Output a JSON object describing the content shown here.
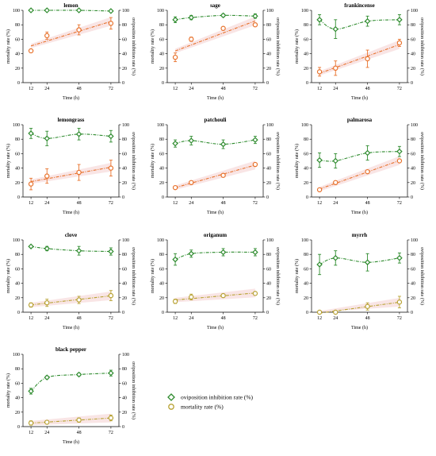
{
  "colors": {
    "green": "#2e8b2e",
    "orange": "#e8722c",
    "olive": "#b8a233",
    "shade": "#f7dede"
  },
  "legend": {
    "oviposition_label": "oviposition inhibition rate (%)",
    "mortality_label": "mortality rate (%)"
  },
  "axis_text": {
    "x_label": "Time (h)",
    "y_left_label": "mortality rate (%)",
    "y_right_label": "oviposition inhibition rate (%)"
  },
  "chart_data": [
    {
      "type": "line",
      "title": "lemon",
      "x": [
        12,
        24,
        48,
        72
      ],
      "x_ticks": [
        12,
        24,
        48,
        72
      ],
      "xlabel": "Time (h)",
      "ylabel": "mortality rate (%)",
      "y2label": "oviposition inhibition rate (%)",
      "ylim": [
        0,
        100
      ],
      "y_ticks": [
        0,
        20,
        40,
        60,
        80,
        100
      ],
      "mortality_color": "orange",
      "series": [
        {
          "name": "oviposition inhibition rate (%)",
          "axis": "right",
          "values": [
            100,
            100,
            100,
            99
          ],
          "errors": [
            1,
            1,
            1,
            1
          ]
        },
        {
          "name": "mortality rate (%)",
          "axis": "left",
          "values": [
            44,
            65,
            73,
            82
          ],
          "errors": [
            1,
            5,
            7,
            8
          ]
        }
      ]
    },
    {
      "type": "line",
      "title": "sage",
      "x": [
        12,
        24,
        48,
        72
      ],
      "x_ticks": [
        12,
        24,
        48,
        72
      ],
      "xlabel": "Time (h)",
      "ylabel": "mortality rate (%)",
      "y2label": "oviposition inhibition rate (%)",
      "ylim": [
        0,
        100
      ],
      "y_ticks": [
        0,
        20,
        40,
        60,
        80,
        100
      ],
      "mortality_color": "orange",
      "series": [
        {
          "name": "oviposition inhibition rate (%)",
          "axis": "right",
          "values": [
            87,
            90,
            93,
            92
          ],
          "errors": [
            4,
            3,
            2,
            3
          ]
        },
        {
          "name": "mortality rate (%)",
          "axis": "left",
          "values": [
            35,
            60,
            75,
            80
          ],
          "errors": [
            6,
            3,
            1,
            1
          ]
        }
      ]
    },
    {
      "type": "line",
      "title": "frankincense",
      "x": [
        12,
        24,
        48,
        72
      ],
      "x_ticks": [
        12,
        24,
        48,
        72
      ],
      "xlabel": "Time (h)",
      "ylabel": "mortality rate (%)",
      "y2label": "oviposition inhibition rate (%)",
      "ylim": [
        0,
        100
      ],
      "y_ticks": [
        0,
        20,
        40,
        60,
        80,
        100
      ],
      "mortality_color": "orange",
      "series": [
        {
          "name": "oviposition inhibition rate (%)",
          "axis": "right",
          "values": [
            87,
            74,
            85,
            87
          ],
          "errors": [
            7,
            13,
            7,
            7
          ]
        },
        {
          "name": "mortality rate (%)",
          "axis": "left",
          "values": [
            15,
            20,
            33,
            55
          ],
          "errors": [
            6,
            10,
            12,
            5
          ]
        }
      ]
    },
    {
      "type": "line",
      "title": "lemongrass",
      "x": [
        12,
        24,
        48,
        72
      ],
      "x_ticks": [
        12,
        24,
        48,
        72
      ],
      "xlabel": "Time (h)",
      "ylabel": "mortality rate (%)",
      "y2label": "oviposition inhibition rate (%)",
      "ylim": [
        0,
        100
      ],
      "y_ticks": [
        0,
        20,
        40,
        60,
        80,
        100
      ],
      "mortality_color": "orange",
      "series": [
        {
          "name": "oviposition inhibition rate (%)",
          "axis": "right",
          "values": [
            88,
            81,
            87,
            84
          ],
          "errors": [
            7,
            10,
            8,
            8
          ]
        },
        {
          "name": "mortality rate (%)",
          "axis": "left",
          "values": [
            18,
            29,
            34,
            40
          ],
          "errors": [
            8,
            10,
            11,
            11
          ]
        }
      ]
    },
    {
      "type": "line",
      "title": "patchouli",
      "x": [
        12,
        24,
        48,
        72
      ],
      "x_ticks": [
        12,
        24,
        48,
        72
      ],
      "xlabel": "Time (h)",
      "ylabel": "mortality rate (%)",
      "y2label": "oviposition inhibition rate (%)",
      "ylim": [
        0,
        100
      ],
      "y_ticks": [
        0,
        20,
        40,
        60,
        80,
        100
      ],
      "mortality_color": "orange",
      "series": [
        {
          "name": "oviposition inhibition rate (%)",
          "axis": "right",
          "values": [
            74,
            78,
            73,
            79
          ],
          "errors": [
            5,
            6,
            6,
            5
          ]
        },
        {
          "name": "mortality rate (%)",
          "axis": "left",
          "values": [
            13,
            20,
            30,
            45
          ],
          "errors": [
            1,
            1,
            1,
            2
          ]
        }
      ]
    },
    {
      "type": "line",
      "title": "palmarosa",
      "x": [
        12,
        24,
        48,
        72
      ],
      "x_ticks": [
        12,
        24,
        48,
        72
      ],
      "xlabel": "Time (h)",
      "ylabel": "mortality rate (%)",
      "y2label": "oviposition inhibition rate (%)",
      "ylim": [
        0,
        100
      ],
      "y_ticks": [
        0,
        20,
        40,
        60,
        80,
        100
      ],
      "mortality_color": "orange",
      "series": [
        {
          "name": "oviposition inhibition rate (%)",
          "axis": "right",
          "values": [
            51,
            50,
            61,
            63
          ],
          "errors": [
            10,
            10,
            10,
            7
          ]
        },
        {
          "name": "mortality rate (%)",
          "axis": "left",
          "values": [
            10,
            20,
            35,
            50
          ],
          "errors": [
            1,
            1,
            1,
            1
          ]
        }
      ]
    },
    {
      "type": "line",
      "title": "clove",
      "x": [
        12,
        24,
        48,
        72
      ],
      "x_ticks": [
        12,
        24,
        48,
        72
      ],
      "xlabel": "Time (h)",
      "ylabel": "mortality rate (%)",
      "y2label": "oviposition inhibition rate (%)",
      "ylim": [
        0,
        100
      ],
      "y_ticks": [
        0,
        20,
        40,
        60,
        80,
        100
      ],
      "mortality_color": "olive",
      "series": [
        {
          "name": "oviposition inhibition rate (%)",
          "axis": "right",
          "values": [
            91,
            88,
            85,
            84
          ],
          "errors": [
            1,
            3,
            6,
            5
          ]
        },
        {
          "name": "mortality rate (%)",
          "axis": "left",
          "values": [
            10,
            13,
            17,
            23
          ],
          "errors": [
            3,
            5,
            5,
            7
          ]
        }
      ]
    },
    {
      "type": "line",
      "title": "origanum",
      "x": [
        12,
        24,
        48,
        72
      ],
      "x_ticks": [
        12,
        24,
        48,
        72
      ],
      "xlabel": "Time (h)",
      "ylabel": "mortality rate (%)",
      "y2label": "oviposition inhibition rate (%)",
      "ylim": [
        0,
        100
      ],
      "y_ticks": [
        0,
        20,
        40,
        60,
        80,
        100
      ],
      "mortality_color": "olive",
      "series": [
        {
          "name": "oviposition inhibition rate (%)",
          "axis": "right",
          "values": [
            73,
            81,
            83,
            83
          ],
          "errors": [
            8,
            5,
            5,
            5
          ]
        },
        {
          "name": "mortality rate (%)",
          "axis": "left",
          "values": [
            15,
            21,
            23,
            26
          ],
          "errors": [
            3,
            4,
            2,
            1
          ]
        }
      ]
    },
    {
      "type": "line",
      "title": "myrrh",
      "x": [
        12,
        24,
        48,
        72
      ],
      "x_ticks": [
        12,
        24,
        48,
        72
      ],
      "xlabel": "Time (h)",
      "ylabel": "mortality rate (%)",
      "y2label": "oviposition inhibition rate (%)",
      "ylim": [
        0,
        100
      ],
      "y_ticks": [
        0,
        20,
        40,
        60,
        80,
        100
      ],
      "mortality_color": "olive",
      "series": [
        {
          "name": "oviposition inhibition rate (%)",
          "axis": "right",
          "values": [
            66,
            75,
            69,
            75
          ],
          "errors": [
            14,
            10,
            12,
            7
          ]
        },
        {
          "name": "mortality rate (%)",
          "axis": "left",
          "values": [
            0,
            0,
            8,
            14
          ],
          "errors": [
            0,
            1,
            5,
            8
          ]
        }
      ]
    },
    {
      "type": "line",
      "title": "black pepper",
      "x": [
        12,
        24,
        48,
        72
      ],
      "x_ticks": [
        12,
        24,
        48,
        72
      ],
      "xlabel": "Time (h)",
      "ylabel": "mortality rate (%)",
      "y2label": "oviposition inhibition rate (%)",
      "ylim": [
        0,
        100
      ],
      "y_ticks": [
        0,
        20,
        40,
        60,
        80,
        100
      ],
      "mortality_color": "olive",
      "series": [
        {
          "name": "oviposition inhibition rate (%)",
          "axis": "right",
          "values": [
            49,
            68,
            72,
            74
          ],
          "errors": [
            4,
            2,
            2,
            4
          ]
        },
        {
          "name": "mortality rate (%)",
          "axis": "left",
          "values": [
            5,
            6,
            9,
            12
          ],
          "errors": [
            3,
            1,
            3,
            4
          ]
        }
      ]
    }
  ]
}
